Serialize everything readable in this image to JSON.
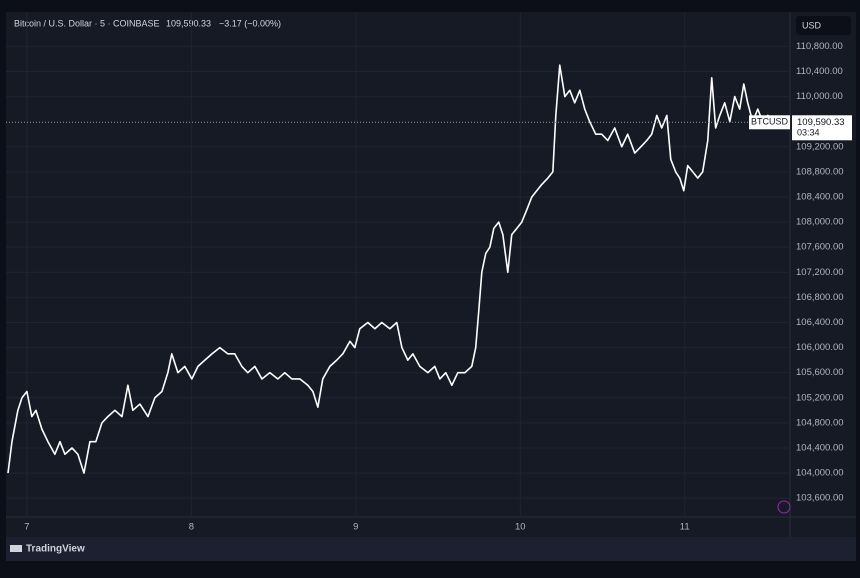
{
  "header": {
    "symbol": "Bitcoin / U.S. Dollar · 5 · COINBASE",
    "last": "109,590.33",
    "change": "−3.17 (−0.00%)"
  },
  "currency": "USD",
  "footer": "TradingView",
  "chart_data": {
    "type": "line",
    "color": "#ffffff",
    "grid": true,
    "x": [
      6.885,
      6.909,
      6.945,
      6.97,
      7.0,
      7.03,
      7.055,
      7.091,
      7.128,
      7.17,
      7.201,
      7.231,
      7.274,
      7.31,
      7.347,
      7.383,
      7.419,
      7.456,
      7.492,
      7.535,
      7.578,
      7.614,
      7.644,
      7.687,
      7.736,
      7.778,
      7.821,
      7.857,
      7.881,
      7.918,
      7.96,
      8.003,
      8.04,
      8.082,
      8.125,
      8.173,
      8.222,
      8.264,
      8.307,
      8.343,
      8.386,
      8.429,
      8.477,
      8.526,
      8.568,
      8.611,
      8.66,
      8.708,
      8.739,
      8.769,
      8.799,
      8.842,
      8.884,
      8.921,
      8.964,
      8.994,
      9.024,
      9.073,
      9.116,
      9.158,
      9.207,
      9.249,
      9.28,
      9.316,
      9.347,
      9.389,
      9.438,
      9.48,
      9.511,
      9.547,
      9.584,
      9.62,
      9.663,
      9.705,
      9.729,
      9.748,
      9.766,
      9.79,
      9.815,
      9.839,
      9.869,
      9.894,
      9.924,
      9.948,
      9.979,
      10.009,
      10.04,
      10.07,
      10.1,
      10.131,
      10.167,
      10.198,
      10.216,
      10.24,
      10.271,
      10.301,
      10.331,
      10.362,
      10.392,
      10.422,
      10.459,
      10.495,
      10.532,
      10.574,
      10.617,
      10.653,
      10.696,
      10.733,
      10.769,
      10.799,
      10.83,
      10.86,
      10.891,
      10.915,
      10.945,
      10.97,
      10.994,
      11.018,
      11.049,
      11.079,
      11.109,
      11.14,
      11.164,
      11.188,
      11.213,
      11.243,
      11.274,
      11.304,
      11.334,
      11.359,
      11.383,
      11.413,
      11.444,
      11.474,
      11.505,
      11.535,
      11.565,
      11.596
    ],
    "values": [
      104000,
      104500,
      105000,
      105200,
      105300,
      104900,
      105000,
      104700,
      104500,
      104300,
      104500,
      104300,
      104400,
      104300,
      104000,
      104500,
      104500,
      104800,
      104900,
      105000,
      104900,
      105400,
      105000,
      105100,
      104900,
      105200,
      105300,
      105600,
      105900,
      105600,
      105700,
      105500,
      105700,
      105800,
      105900,
      106000,
      105900,
      105900,
      105700,
      105600,
      105700,
      105500,
      105600,
      105500,
      105600,
      105500,
      105500,
      105400,
      105300,
      105050,
      105500,
      105700,
      105800,
      105900,
      106100,
      106000,
      106300,
      106400,
      106300,
      106400,
      106300,
      106400,
      106000,
      105800,
      105900,
      105700,
      105600,
      105700,
      105500,
      105600,
      105400,
      105600,
      105600,
      105700,
      106000,
      106600,
      107200,
      107500,
      107600,
      107900,
      108000,
      107800,
      107200,
      107800,
      107900,
      108000,
      108200,
      108400,
      108500,
      108600,
      108700,
      108800,
      109700,
      110500,
      110000,
      110100,
      109900,
      110100,
      109800,
      109600,
      109400,
      109400,
      109300,
      109500,
      109200,
      109400,
      109100,
      109200,
      109300,
      109400,
      109700,
      109500,
      109700,
      109000,
      108800,
      108700,
      108500,
      108900,
      108800,
      108700,
      108800,
      109300,
      110300,
      109500,
      109700,
      109900,
      109600,
      110000,
      109800,
      110200,
      109900,
      109600,
      109800,
      109600,
      109700,
      109600,
      109550,
      109590.33
    ],
    "xlim": [
      6.885,
      11.64
    ],
    "xticks": [
      7,
      8,
      9,
      10,
      11
    ],
    "ylim": [
      103300,
      111300
    ],
    "yticks": [
      {
        "value": 103600,
        "label": "103,600.00"
      },
      {
        "value": 104000,
        "label": "104,000.00"
      },
      {
        "value": 104400,
        "label": "104,400.00"
      },
      {
        "value": 104800,
        "label": "104,800.00"
      },
      {
        "value": 105200,
        "label": "105,200.00"
      },
      {
        "value": 105600,
        "label": "105,600.00"
      },
      {
        "value": 106000,
        "label": "106,000.00"
      },
      {
        "value": 106400,
        "label": "106,400.00"
      },
      {
        "value": 106800,
        "label": "106,800.00"
      },
      {
        "value": 107200,
        "label": "107,200.00"
      },
      {
        "value": 107600,
        "label": "107,600.00"
      },
      {
        "value": 108000,
        "label": "108,000.00"
      },
      {
        "value": 108400,
        "label": "108,400.00"
      },
      {
        "value": 108800,
        "label": "108,800.00"
      },
      {
        "value": 109200,
        "label": "109,200.00"
      },
      {
        "value": 110000,
        "label": "110,000.00"
      },
      {
        "value": 110400,
        "label": "110,400.00"
      },
      {
        "value": 110800,
        "label": "110,800.00"
      }
    ],
    "price_line": {
      "value": 109590.33,
      "label": "109,590.33",
      "symbol": "BTCUSD",
      "countdown": "03:34"
    }
  }
}
